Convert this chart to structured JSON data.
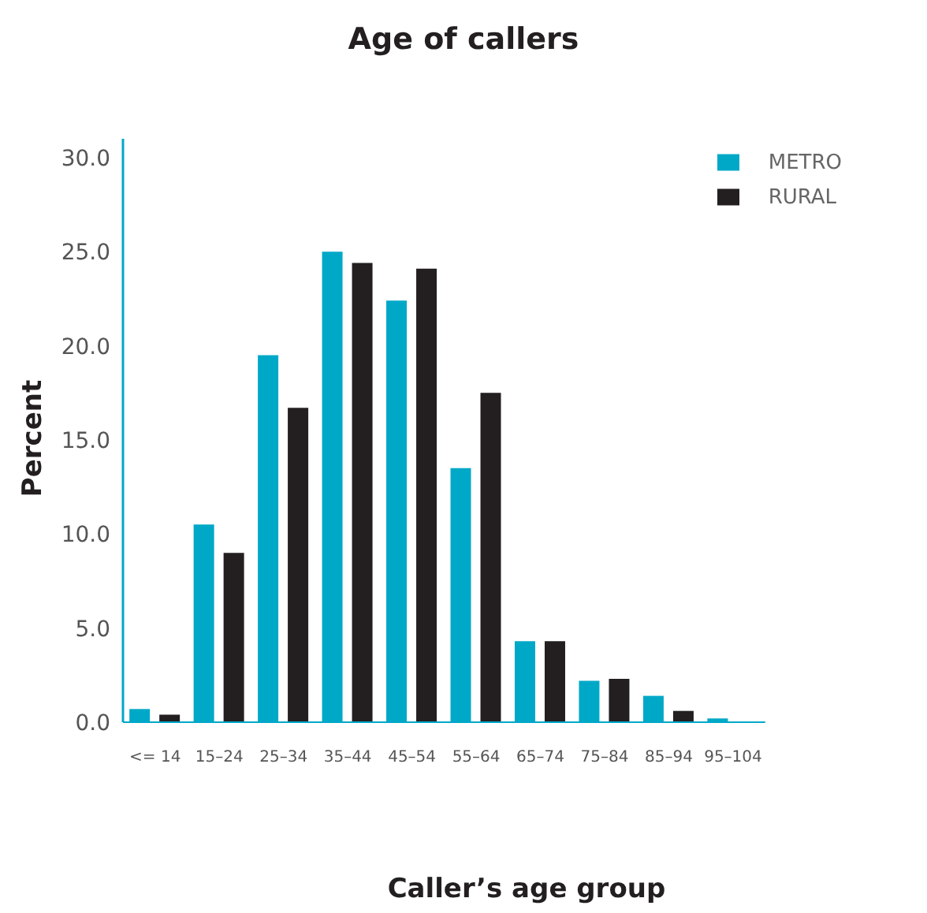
{
  "chart_data": {
    "type": "bar",
    "title": "Age of callers",
    "xlabel": "Caller’s age group",
    "ylabel": "Percent",
    "categories": [
      "<= 14",
      "15–24",
      "25–34",
      "35–44",
      "45–54",
      "55–64",
      "65–74",
      "75–84",
      "85–94",
      "95–104"
    ],
    "series": [
      {
        "name": "METRO",
        "color": "#00a8c8",
        "values": [
          0.7,
          10.5,
          19.5,
          25.0,
          22.4,
          13.5,
          4.3,
          2.2,
          1.4,
          0.2
        ]
      },
      {
        "name": "RURAL",
        "color": "#231f20",
        "values": [
          0.4,
          9.0,
          16.7,
          24.4,
          24.1,
          17.5,
          4.3,
          2.3,
          0.6,
          0
        ]
      }
    ],
    "ylim": [
      0,
      31
    ],
    "yticks": [
      {
        "value": 0,
        "label": "0.0"
      },
      {
        "value": 5,
        "label": "5.0"
      },
      {
        "value": 10,
        "label": "10.0"
      },
      {
        "value": 15,
        "label": "15.0"
      },
      {
        "value": 20,
        "label": "20.0"
      },
      {
        "value": 25,
        "label": "25.0"
      },
      {
        "value": 30,
        "label": "30.0"
      }
    ],
    "grid": false,
    "legend": "top right"
  }
}
